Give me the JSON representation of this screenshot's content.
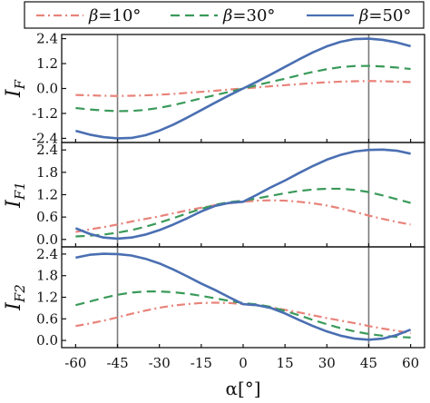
{
  "chart_data": [
    {
      "type": "line",
      "panel": "top",
      "ylabel": "I_F",
      "ylabel_main": "I",
      "ylabel_sub": "F",
      "ylim": [
        -2.6,
        2.6
      ],
      "yticks": [
        -2.4,
        -1.2,
        0.0,
        1.2,
        2.4
      ],
      "yticklabels": [
        "-2.4",
        "-1.2",
        "0.0",
        "1.2",
        "2.4"
      ],
      "x": [
        -60,
        -55,
        -50,
        -45,
        -40,
        -35,
        -30,
        -25,
        -20,
        -15,
        -10,
        -5,
        0,
        5,
        10,
        15,
        20,
        25,
        30,
        35,
        40,
        45,
        50,
        55,
        60
      ],
      "series": [
        {
          "name": "β=10°",
          "values": [
            -0.31,
            -0.33,
            -0.35,
            -0.36,
            -0.35,
            -0.33,
            -0.3,
            -0.26,
            -0.21,
            -0.16,
            -0.11,
            -0.05,
            0.0,
            0.05,
            0.11,
            0.16,
            0.21,
            0.26,
            0.3,
            0.33,
            0.35,
            0.36,
            0.35,
            0.33,
            0.31
          ]
        },
        {
          "name": "β=30°",
          "values": [
            -0.94,
            -1.01,
            -1.06,
            -1.09,
            -1.08,
            -1.03,
            -0.93,
            -0.8,
            -0.64,
            -0.47,
            -0.32,
            -0.16,
            0.0,
            0.16,
            0.32,
            0.47,
            0.64,
            0.8,
            0.93,
            1.03,
            1.08,
            1.09,
            1.06,
            1.01,
            0.94
          ]
        },
        {
          "name": "β=50°",
          "values": [
            -2.04,
            -2.22,
            -2.34,
            -2.4,
            -2.38,
            -2.25,
            -2.03,
            -1.74,
            -1.4,
            -1.04,
            -0.68,
            -0.33,
            0.0,
            0.33,
            0.68,
            1.04,
            1.4,
            1.74,
            2.03,
            2.25,
            2.38,
            2.4,
            2.34,
            2.22,
            2.04
          ]
        }
      ]
    },
    {
      "type": "line",
      "panel": "middle",
      "ylabel": "I_F1",
      "ylabel_main": "I",
      "ylabel_sub": "F1",
      "ylim": [
        -0.2,
        2.6
      ],
      "yticks": [
        0.0,
        0.6,
        1.2,
        1.8,
        2.4
      ],
      "yticklabels": [
        "0.0",
        "0.6",
        "1.2",
        "1.8",
        "2.4"
      ],
      "x": [
        -60,
        -55,
        -50,
        -45,
        -40,
        -35,
        -30,
        -25,
        -20,
        -15,
        -10,
        -5,
        0,
        5,
        10,
        15,
        20,
        25,
        30,
        35,
        40,
        45,
        50,
        55,
        60
      ],
      "series": [
        {
          "name": "β=10°",
          "values": [
            0.2,
            0.27,
            0.33,
            0.4,
            0.48,
            0.55,
            0.62,
            0.7,
            0.78,
            0.85,
            0.92,
            0.97,
            1.01,
            1.04,
            1.05,
            1.04,
            1.01,
            0.97,
            0.91,
            0.83,
            0.74,
            0.64,
            0.55,
            0.47,
            0.4
          ]
        },
        {
          "name": "β=30°",
          "values": [
            0.08,
            0.1,
            0.13,
            0.18,
            0.25,
            0.34,
            0.45,
            0.57,
            0.7,
            0.82,
            0.93,
            1.0,
            1.04,
            1.1,
            1.17,
            1.24,
            1.3,
            1.34,
            1.36,
            1.36,
            1.33,
            1.27,
            1.18,
            1.08,
            0.98
          ]
        },
        {
          "name": "β=50°",
          "values": [
            0.3,
            0.15,
            0.05,
            0.02,
            0.05,
            0.13,
            0.25,
            0.4,
            0.57,
            0.75,
            0.9,
            0.98,
            1.01,
            1.2,
            1.4,
            1.58,
            1.78,
            1.97,
            2.14,
            2.27,
            2.36,
            2.4,
            2.41,
            2.38,
            2.3
          ]
        }
      ]
    },
    {
      "type": "line",
      "panel": "bottom",
      "ylabel": "I_F2",
      "ylabel_main": "I",
      "ylabel_sub": "F2",
      "xlabel": "α[°]",
      "ylim": [
        -0.2,
        2.6
      ],
      "yticks": [
        0.0,
        0.6,
        1.2,
        1.8,
        2.4
      ],
      "yticklabels": [
        "0.0",
        "0.6",
        "1.2",
        "1.8",
        "2.4"
      ],
      "xticks": [
        -60,
        -45,
        -30,
        -15,
        0,
        15,
        30,
        45,
        60
      ],
      "xticklabels": [
        "-60",
        "-45",
        "-30",
        "-15",
        "0",
        "15",
        "30",
        "45",
        "60"
      ],
      "x": [
        -60,
        -55,
        -50,
        -45,
        -40,
        -35,
        -30,
        -25,
        -20,
        -15,
        -10,
        -5,
        0,
        5,
        10,
        15,
        20,
        25,
        30,
        35,
        40,
        45,
        50,
        55,
        60
      ],
      "series": [
        {
          "name": "β=10°",
          "values": [
            0.4,
            0.47,
            0.55,
            0.64,
            0.74,
            0.83,
            0.91,
            0.97,
            1.01,
            1.04,
            1.05,
            1.04,
            1.01,
            0.97,
            0.92,
            0.85,
            0.78,
            0.7,
            0.62,
            0.55,
            0.48,
            0.4,
            0.33,
            0.27,
            0.2
          ]
        },
        {
          "name": "β=30°",
          "values": [
            0.98,
            1.08,
            1.18,
            1.27,
            1.33,
            1.36,
            1.36,
            1.34,
            1.3,
            1.24,
            1.17,
            1.1,
            1.04,
            1.0,
            0.93,
            0.82,
            0.7,
            0.57,
            0.45,
            0.34,
            0.25,
            0.18,
            0.13,
            0.1,
            0.08
          ]
        },
        {
          "name": "β=50°",
          "values": [
            2.3,
            2.38,
            2.41,
            2.4,
            2.36,
            2.27,
            2.14,
            1.97,
            1.78,
            1.58,
            1.4,
            1.2,
            1.01,
            0.98,
            0.9,
            0.75,
            0.57,
            0.4,
            0.25,
            0.13,
            0.05,
            0.02,
            0.05,
            0.15,
            0.3
          ]
        }
      ]
    }
  ],
  "legend": {
    "placement": "top",
    "entries": [
      {
        "label": "β=10°",
        "greek": "β",
        "rest": "=10°"
      },
      {
        "label": "β=30°",
        "greek": "β",
        "rest": "=30°"
      },
      {
        "label": "β=50°",
        "greek": "β",
        "rest": "=50°"
      }
    ]
  },
  "series_styles": [
    {
      "color": "#e8837a",
      "dash": "9,4,2,4"
    },
    {
      "color": "#3a9a5a",
      "dash": "10,6"
    },
    {
      "color": "#4a6fb2",
      "dash": ""
    }
  ],
  "vertical_lines": [
    -45,
    45
  ],
  "vertical_line_color": "#7a7a7a",
  "xlim": [
    -65,
    65
  ],
  "grid": false
}
